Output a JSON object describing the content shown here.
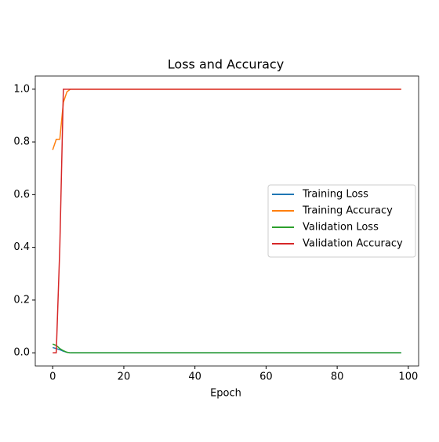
{
  "chart_data": {
    "type": "line",
    "title": "Loss and Accuracy",
    "x_label": "Epoch",
    "x": [
      0,
      1,
      2,
      3,
      4,
      5,
      6,
      7,
      8,
      9,
      10,
      11,
      12,
      13,
      14,
      15,
      16,
      17,
      18,
      19,
      20,
      21,
      22,
      23,
      24,
      25,
      26,
      27,
      28,
      29,
      30,
      31,
      32,
      33,
      34,
      35,
      36,
      37,
      38,
      39,
      40,
      41,
      42,
      43,
      44,
      45,
      46,
      47,
      48,
      49,
      50,
      51,
      52,
      53,
      54,
      55,
      56,
      57,
      58,
      59,
      60,
      61,
      62,
      63,
      64,
      65,
      66,
      67,
      68,
      69,
      70,
      71,
      72,
      73,
      74,
      75,
      76,
      77,
      78,
      79,
      80,
      81,
      82,
      83,
      84,
      85,
      86,
      87,
      88,
      89,
      90,
      91,
      92,
      93,
      94,
      95,
      96,
      97,
      98
    ],
    "series": [
      {
        "name": "Training Loss",
        "color": "#1f77b4",
        "values": [
          0.02,
          0.016,
          0.012,
          0.006,
          0.002,
          0,
          0,
          0,
          0,
          0,
          0,
          0,
          0,
          0,
          0,
          0,
          0,
          0,
          0,
          0,
          0,
          0,
          0,
          0,
          0,
          0,
          0,
          0,
          0,
          0,
          0,
          0,
          0,
          0,
          0,
          0,
          0,
          0,
          0,
          0,
          0,
          0,
          0,
          0,
          0,
          0,
          0,
          0,
          0,
          0,
          0,
          0,
          0,
          0,
          0,
          0,
          0,
          0,
          0,
          0,
          0,
          0,
          0,
          0,
          0,
          0,
          0,
          0,
          0,
          0,
          0,
          0,
          0,
          0,
          0,
          0,
          0,
          0,
          0,
          0,
          0,
          0,
          0,
          0,
          0,
          0,
          0,
          0,
          0,
          0,
          0,
          0,
          0,
          0,
          0,
          0,
          0,
          0,
          0
        ]
      },
      {
        "name": "Training Accuracy",
        "color": "#ff7f0e",
        "values": [
          0.77,
          0.81,
          0.81,
          0.95,
          0.99,
          1,
          1,
          1,
          1,
          1,
          1,
          1,
          1,
          1,
          1,
          1,
          1,
          1,
          1,
          1,
          1,
          1,
          1,
          1,
          1,
          1,
          1,
          1,
          1,
          1,
          1,
          1,
          1,
          1,
          1,
          1,
          1,
          1,
          1,
          1,
          1,
          1,
          1,
          1,
          1,
          1,
          1,
          1,
          1,
          1,
          1,
          1,
          1,
          1,
          1,
          1,
          1,
          1,
          1,
          1,
          1,
          1,
          1,
          1,
          1,
          1,
          1,
          1,
          1,
          1,
          1,
          1,
          1,
          1,
          1,
          1,
          1,
          1,
          1,
          1,
          1,
          1,
          1,
          1,
          1,
          1,
          1,
          1,
          1,
          1,
          1,
          1,
          1,
          1,
          1,
          1,
          1,
          1,
          1
        ]
      },
      {
        "name": "Validation Loss",
        "color": "#2ca02c",
        "values": [
          0.033,
          0.028,
          0.016,
          0.008,
          0.002,
          0,
          0,
          0,
          0,
          0,
          0,
          0,
          0,
          0,
          0,
          0,
          0,
          0,
          0,
          0,
          0,
          0,
          0,
          0,
          0,
          0,
          0,
          0,
          0,
          0,
          0,
          0,
          0,
          0,
          0,
          0,
          0,
          0,
          0,
          0,
          0,
          0,
          0,
          0,
          0,
          0,
          0,
          0,
          0,
          0,
          0,
          0,
          0,
          0,
          0,
          0,
          0,
          0,
          0,
          0,
          0,
          0,
          0,
          0,
          0,
          0,
          0,
          0,
          0,
          0,
          0,
          0,
          0,
          0,
          0,
          0,
          0,
          0,
          0,
          0,
          0,
          0,
          0,
          0,
          0,
          0,
          0,
          0,
          0,
          0,
          0,
          0,
          0,
          0,
          0,
          0,
          0,
          0,
          0
        ]
      },
      {
        "name": "Validation Accuracy",
        "color": "#d62728",
        "values": [
          0,
          0,
          0.4,
          1,
          1,
          1,
          1,
          1,
          1,
          1,
          1,
          1,
          1,
          1,
          1,
          1,
          1,
          1,
          1,
          1,
          1,
          1,
          1,
          1,
          1,
          1,
          1,
          1,
          1,
          1,
          1,
          1,
          1,
          1,
          1,
          1,
          1,
          1,
          1,
          1,
          1,
          1,
          1,
          1,
          1,
          1,
          1,
          1,
          1,
          1,
          1,
          1,
          1,
          1,
          1,
          1,
          1,
          1,
          1,
          1,
          1,
          1,
          1,
          1,
          1,
          1,
          1,
          1,
          1,
          1,
          1,
          1,
          1,
          1,
          1,
          1,
          1,
          1,
          1,
          1,
          1,
          1,
          1,
          1,
          1,
          1,
          1,
          1,
          1,
          1,
          1,
          1,
          1,
          1,
          1,
          1,
          1,
          1,
          1
        ]
      }
    ],
    "xlim": [
      -4.9,
      102.9
    ],
    "ylim": [
      -0.05,
      1.05
    ],
    "xticks": [
      0,
      20,
      40,
      60,
      80,
      100
    ],
    "yticks": [
      {
        "value": 0,
        "label": "0.0"
      },
      0.2,
      0.4,
      0.6,
      0.8,
      {
        "value": 1,
        "label": "1.0"
      }
    ],
    "legend": "center right"
  }
}
